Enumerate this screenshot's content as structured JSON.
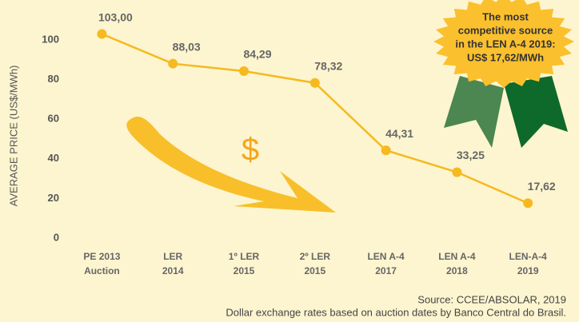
{
  "chart_data": {
    "type": "line",
    "y_label": "AVERAGE  PRICE  (US$/MWh)",
    "categories": [
      [
        "PE  2013",
        "Auction"
      ],
      [
        "LER",
        "2014"
      ],
      [
        "1º LER",
        "2015"
      ],
      [
        "2º LER",
        "2015"
      ],
      [
        "LEN A-4",
        "2017"
      ],
      [
        "LEN A-4",
        "2018"
      ],
      [
        "LEN-A-4",
        "2019"
      ]
    ],
    "series": [
      {
        "color": "#f6b91f",
        "values": [
          103,
          88.03,
          84.29,
          78.32,
          44.31,
          33.25,
          17.62
        ],
        "value_labels": [
          "103,00",
          "88,03",
          "84,29",
          "78,32",
          "44,31",
          "33,25",
          "17,62"
        ]
      }
    ],
    "ylim": [
      0,
      105
    ],
    "yticks": [
      0,
      20,
      40,
      60,
      80,
      100
    ],
    "grid": false,
    "badge": [
      "The most",
      "competitive source",
      "in the LEN A-4 2019:",
      "US$ 17,62/MWh"
    ],
    "symbol": "$",
    "source": [
      "Source: CCEE/ABSOLAR, 2019",
      "Dollar exchange rates based on auction dates by Banco Central do Brasil."
    ]
  }
}
